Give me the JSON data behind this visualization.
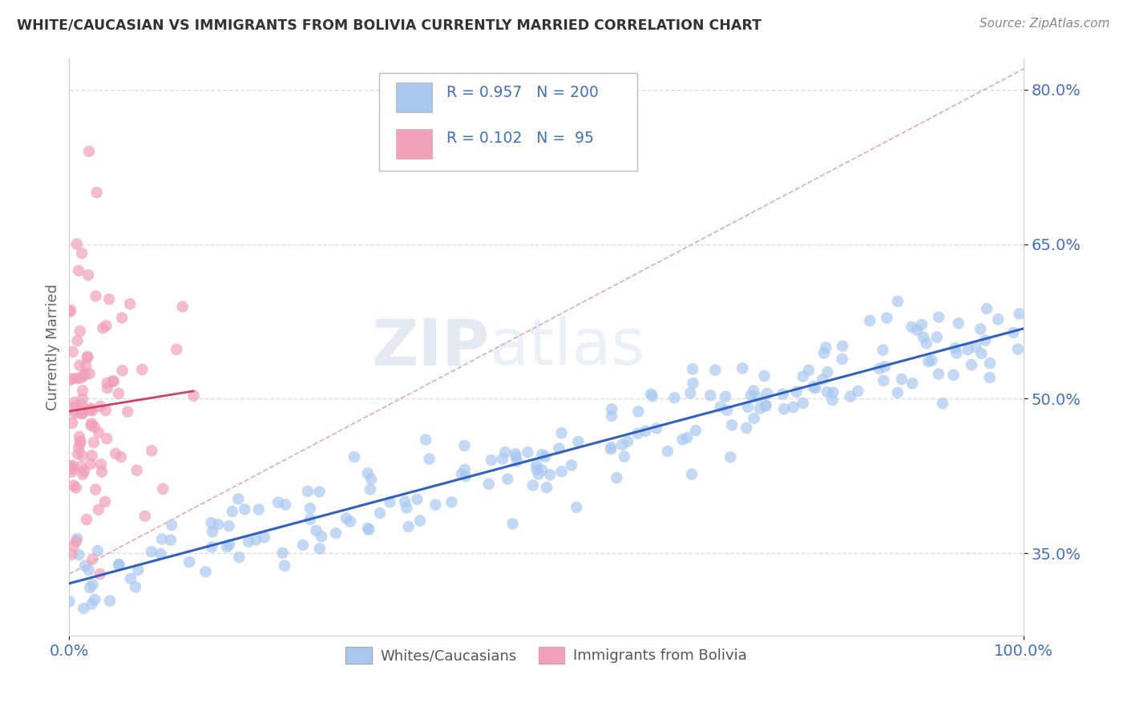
{
  "title": "WHITE/CAUCASIAN VS IMMIGRANTS FROM BOLIVIA CURRENTLY MARRIED CORRELATION CHART",
  "source": "Source: ZipAtlas.com",
  "ylabel": "Currently Married",
  "x_min": 0.0,
  "x_max": 1.0,
  "y_min": 0.27,
  "y_max": 0.83,
  "y_ticks": [
    0.35,
    0.5,
    0.65,
    0.8
  ],
  "y_tick_labels": [
    "35.0%",
    "50.0%",
    "65.0%",
    "80.0%"
  ],
  "x_ticks": [
    0.0,
    1.0
  ],
  "x_tick_labels": [
    "0.0%",
    "100.0%"
  ],
  "blue_R": 0.957,
  "blue_N": 200,
  "pink_R": 0.102,
  "pink_N": 95,
  "blue_color": "#a8c8f0",
  "pink_color": "#f0a0b8",
  "blue_line_color": "#3060c0",
  "pink_line_color": "#d04060",
  "dashed_line_color": "#e090a0",
  "watermark_zip": "ZIP",
  "watermark_atlas": "atlas",
  "legend_labels": [
    "Whites/Caucasians",
    "Immigrants from Bolivia"
  ],
  "background_color": "#ffffff",
  "grid_color": "#d8dce8",
  "tick_color": "#4070c0"
}
